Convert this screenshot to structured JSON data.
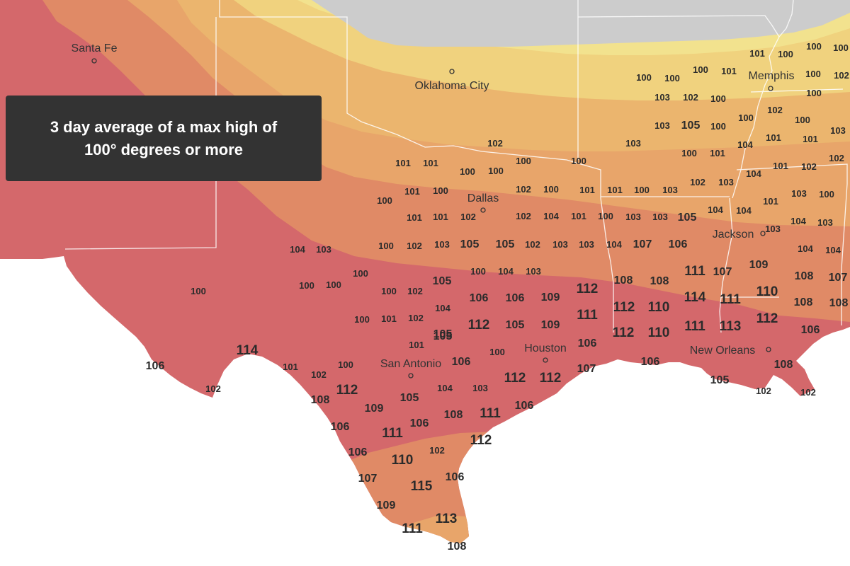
{
  "map_title": "3 day average of a max high of 100° degrees or more",
  "colors": {
    "no_data": "#cccccc",
    "band_100": "#f2e28e",
    "band_101": "#f0d27e",
    "band_102": "#ebb56e",
    "band_103": "#e8a56a",
    "band_105": "#e08a66",
    "band_110": "#d4686b",
    "ocean": "#ffffff",
    "border": "#ffffff",
    "text": "#2b2b2b"
  },
  "cities": [
    {
      "name": "Santa Fe"
    },
    {
      "name": "Oklahoma City"
    },
    {
      "name": "Memphis"
    },
    {
      "name": "Dallas"
    },
    {
      "name": "Jackson"
    },
    {
      "name": "Houston"
    },
    {
      "name": "San Antonio"
    },
    {
      "name": "New Orleans"
    }
  ],
  "readings": [
    "101",
    "100",
    "100",
    "100",
    "100",
    "101",
    "100",
    "102",
    "100",
    "100",
    "100",
    "102",
    "103",
    "102",
    "100",
    "100",
    "103",
    "105",
    "100",
    "100",
    "103",
    "101",
    "101",
    "104",
    "102",
    "103",
    "101",
    "101",
    "100",
    "100",
    "100",
    "101",
    "100",
    "100",
    "102",
    "104",
    "101",
    "102",
    "101",
    "100",
    "100",
    "102",
    "100",
    "101",
    "101",
    "100",
    "103",
    "102",
    "103",
    "101",
    "103",
    "100",
    "104",
    "104",
    "101",
    "101",
    "102",
    "102",
    "104",
    "101",
    "100",
    "103",
    "103",
    "105",
    "103",
    "104",
    "103",
    "104",
    "103",
    "100",
    "102",
    "103",
    "105",
    "105",
    "102",
    "103",
    "103",
    "104",
    "107",
    "106",
    "104",
    "104",
    "100",
    "100",
    "104",
    "103",
    "105",
    "108",
    "108",
    "111",
    "107",
    "109",
    "108",
    "107",
    "100",
    "100",
    "100",
    "100",
    "102",
    "104",
    "106",
    "106",
    "109",
    "112",
    "112",
    "110",
    "114",
    "111",
    "110",
    "108",
    "108",
    "100",
    "101",
    "102",
    "105",
    "112",
    "105",
    "109",
    "111",
    "112",
    "110",
    "111",
    "113",
    "112",
    "106",
    "105",
    "101",
    "106",
    "114",
    "100",
    "106",
    "101",
    "102",
    "100",
    "106",
    "112",
    "112",
    "107",
    "106",
    "105",
    "108",
    "102",
    "102",
    "108",
    "112",
    "104",
    "103",
    "102",
    "105",
    "106",
    "108",
    "111",
    "109",
    "106",
    "106",
    "111",
    "112",
    "102",
    "106",
    "110",
    "107",
    "115",
    "106",
    "109",
    "111",
    "113",
    "108"
  ]
}
